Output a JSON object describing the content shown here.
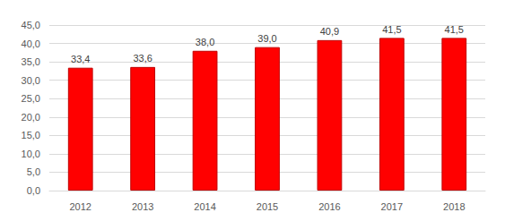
{
  "chart_data": {
    "type": "bar",
    "categories": [
      "2012",
      "2013",
      "2014",
      "2015",
      "2016",
      "2017",
      "2018"
    ],
    "values": [
      33.4,
      33.6,
      38.0,
      39.0,
      40.9,
      41.5,
      41.5
    ],
    "value_labels": [
      "33,4",
      "33,6",
      "38,0",
      "39,0",
      "40,9",
      "41,5",
      "41,5"
    ],
    "color": "#ff0000",
    "ylim": [
      0,
      45
    ],
    "yticks": [
      {
        "value": 0,
        "label": "0,0"
      },
      {
        "value": 5,
        "label": "5,0"
      },
      {
        "value": 10,
        "label": "10,0"
      },
      {
        "value": 15,
        "label": "15,0"
      },
      {
        "value": 20,
        "label": "20,0"
      },
      {
        "value": 25,
        "label": "25,0"
      },
      {
        "value": 30,
        "label": "30,0"
      },
      {
        "value": 35,
        "label": "35,0"
      },
      {
        "value": 40,
        "label": "40,0"
      },
      {
        "value": 45,
        "label": "45,0"
      }
    ],
    "grid": true,
    "data_labels": true
  }
}
